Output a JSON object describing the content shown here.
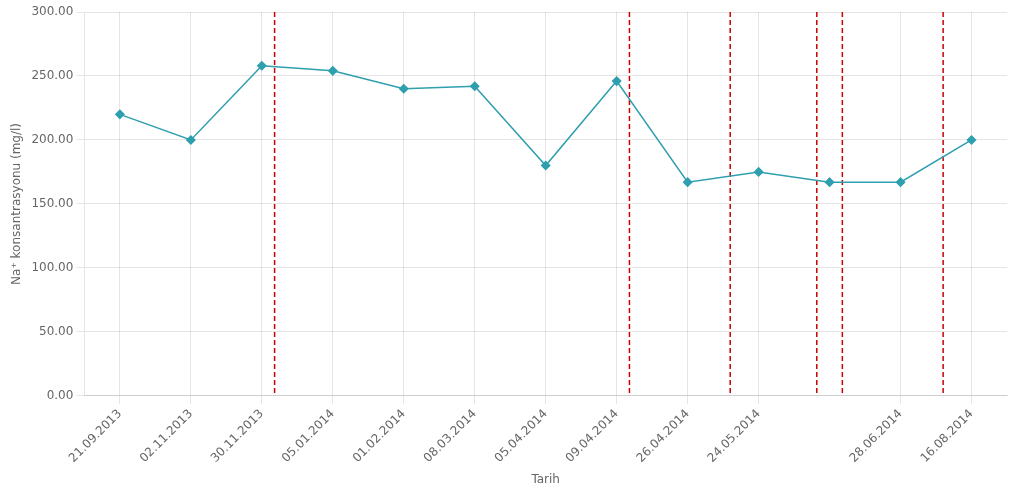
{
  "chart_data": {
    "type": "line",
    "categories": [
      "21.09.2013",
      "02.11.2013",
      "30.11.2013",
      "05.01.2014",
      "01.02.2014",
      "08.03.2014",
      "05.04.2014",
      "09.04.2014",
      "26.04.2014",
      "24.05.2014",
      null,
      "28.06.2014",
      "16.08.2014"
    ],
    "values": [
      220,
      200,
      258,
      254,
      240,
      242,
      180,
      246,
      167,
      175,
      167,
      167,
      200
    ],
    "color": "#2E9FAF",
    "marker": "diamond",
    "xlabel": "Tarih",
    "ylabel": "Na⁺ konsantrasyonu (mg/l)",
    "ylim": [
      0,
      300
    ],
    "yticks": [
      {
        "value": 0,
        "label": "0.00"
      },
      {
        "value": 50,
        "label": "50.00"
      },
      {
        "value": 100,
        "label": "100.00"
      },
      {
        "value": 150,
        "label": "150.00"
      },
      {
        "value": 200,
        "label": "200.00"
      },
      {
        "value": 250,
        "label": "250.00"
      },
      {
        "value": 300,
        "label": "300.00"
      }
    ],
    "grid": true,
    "vertical_lines": {
      "x": [
        2.18,
        7.18,
        8.6,
        9.82,
        10.18,
        11.6
      ],
      "color": "#CC0000",
      "line_style": "dashed"
    }
  }
}
